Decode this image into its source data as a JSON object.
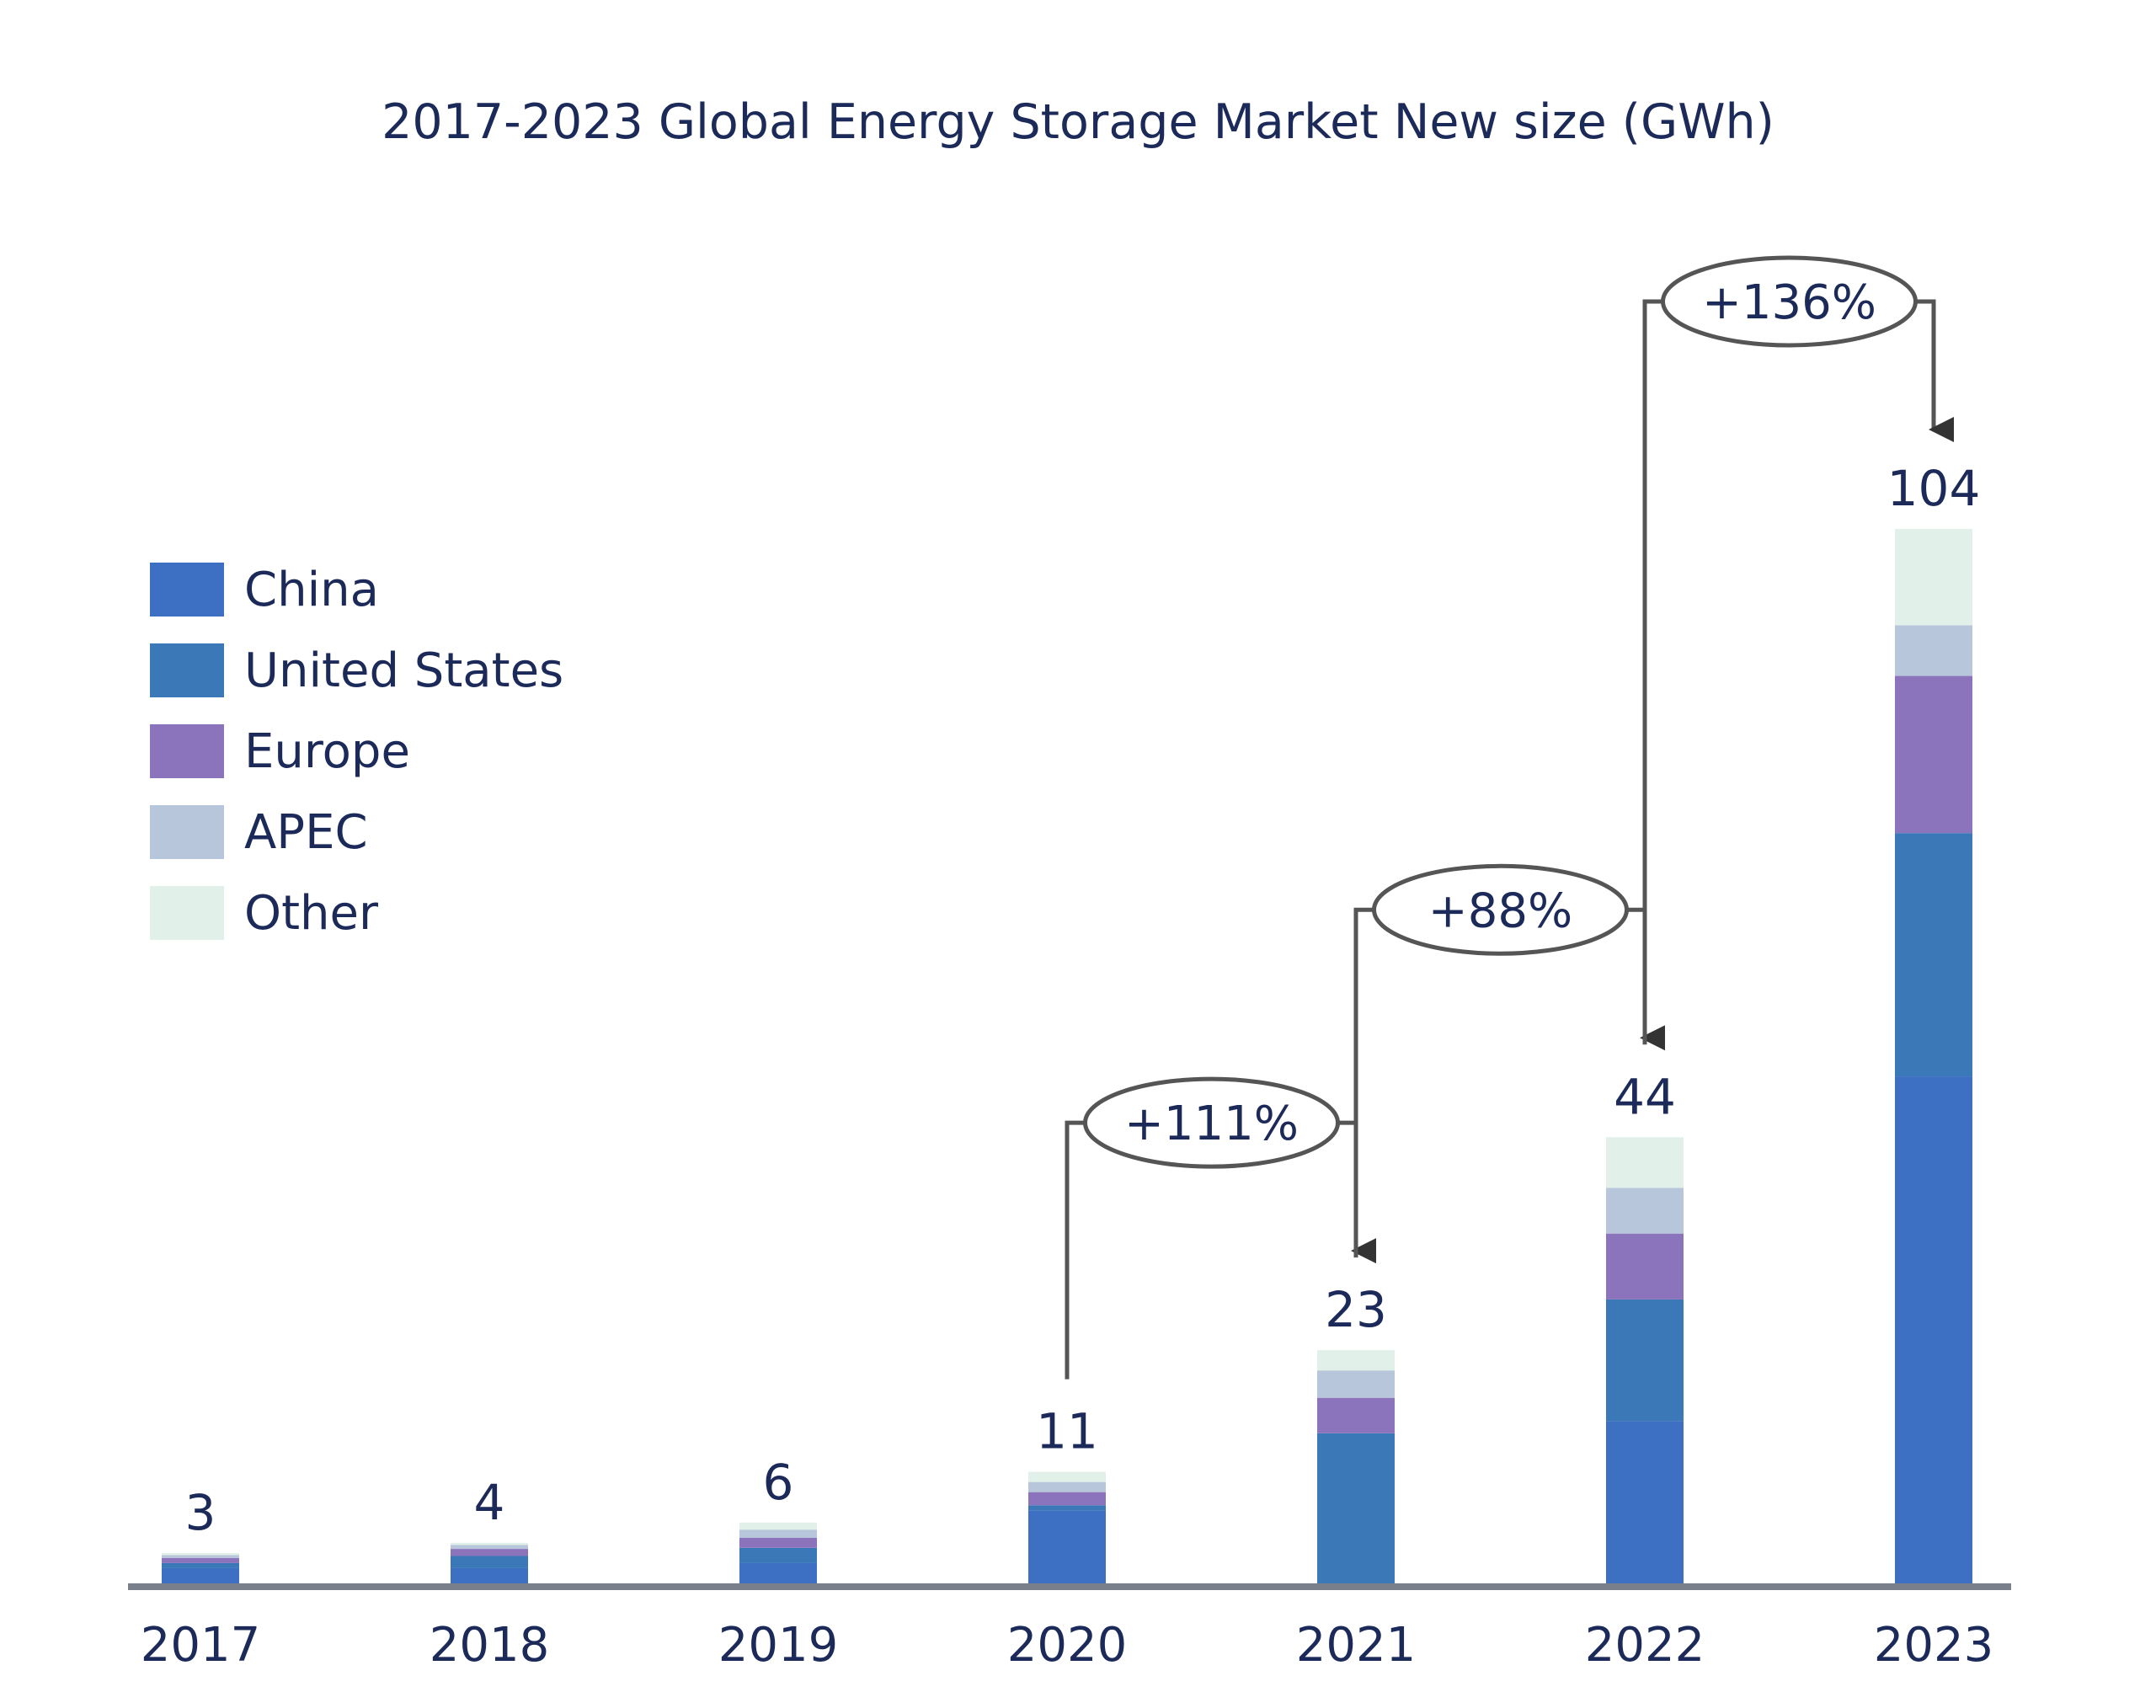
{
  "chart_data": {
    "type": "bar",
    "stacked": true,
    "title": "2017-2023 Global Energy Storage Market New size (GWh)",
    "xlabel": "",
    "ylabel": "",
    "ylim": [
      0,
      104
    ],
    "grid": false,
    "legend_position": "left",
    "categories": [
      "2017",
      "2018",
      "2019",
      "2020",
      "2021",
      "2022",
      "2023"
    ],
    "totals": [
      3,
      4,
      6,
      11,
      23,
      44,
      104
    ],
    "total_labels": [
      "3",
      "4",
      "6",
      "11",
      "23",
      "44",
      "104"
    ],
    "series": [
      {
        "name": "China",
        "color": "#3d6fc2",
        "values": [
          1.5,
          1.5,
          2.0,
          7.2,
          0.0,
          16.0,
          50.0
        ]
      },
      {
        "name": "United States",
        "color": "#3a78b8",
        "values": [
          0.5,
          1.2,
          1.5,
          0.5,
          14.8,
          12.0,
          24.0
        ]
      },
      {
        "name": "Europe",
        "color": "#8c74bc",
        "values": [
          0.5,
          0.7,
          1.0,
          1.3,
          3.5,
          6.5,
          15.5
        ]
      },
      {
        "name": "APEC",
        "color": "#b7c6da",
        "values": [
          0.3,
          0.4,
          0.8,
          1.0,
          2.7,
          4.5,
          5.0
        ]
      },
      {
        "name": "Other",
        "color": "#e1f0e9",
        "values": [
          0.2,
          0.2,
          0.7,
          1.0,
          2.0,
          5.0,
          9.5
        ]
      }
    ],
    "annotations": [
      {
        "text": "+111%",
        "from": "2020",
        "to": "2021"
      },
      {
        "text": "+88%",
        "from": "2021",
        "to": "2022"
      },
      {
        "text": "+136%",
        "from": "2022",
        "to": "2023"
      }
    ]
  }
}
